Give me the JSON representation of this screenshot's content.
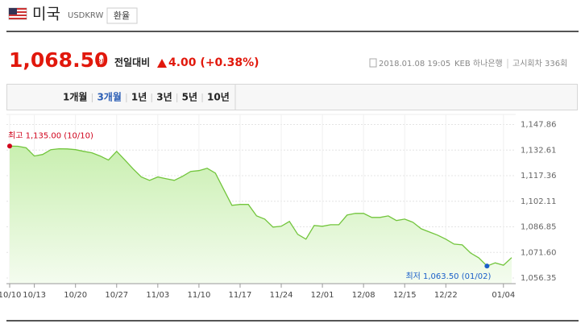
{
  "header": {
    "title": "미국",
    "code": "USDKRW",
    "button": "환율"
  },
  "quote": {
    "price": "1,068.50",
    "unit": "원",
    "change_label": "전일대비",
    "change": "4.00 (+0.38%)",
    "datetime": "2018.01.08 19:05",
    "bank": "KEB 하나은행",
    "round": "고시회차 336회"
  },
  "tabs": [
    "1개월",
    "3개월",
    "1년",
    "3년",
    "5년",
    "10년"
  ],
  "active_tab": 1,
  "chart_data": {
    "type": "area",
    "x": [
      "10/10",
      null,
      null,
      "10/13",
      null,
      null,
      null,
      null,
      "10/20",
      null,
      null,
      null,
      null,
      "10/27",
      null,
      null,
      null,
      null,
      "11/03",
      null,
      null,
      null,
      null,
      "11/10",
      null,
      null,
      null,
      null,
      "11/17",
      null,
      null,
      null,
      null,
      "11/24",
      null,
      null,
      null,
      null,
      "12/01",
      null,
      null,
      null,
      null,
      "12/08",
      null,
      null,
      null,
      null,
      "12/15",
      null,
      null,
      null,
      null,
      "12/22",
      null,
      null,
      null,
      null,
      null,
      null,
      "01/04",
      null
    ],
    "values": [
      1135.0,
      1134.9,
      1134.0,
      1129.1,
      1130.0,
      1132.9,
      1133.4,
      1133.3,
      1132.9,
      1131.9,
      1131.0,
      1129.1,
      1126.7,
      1131.9,
      1126.7,
      1121.4,
      1116.6,
      1114.6,
      1116.6,
      1115.6,
      1114.6,
      1117.0,
      1119.9,
      1120.4,
      1121.8,
      1118.9,
      1109.3,
      1099.7,
      1100.2,
      1100.2,
      1093.4,
      1091.5,
      1086.7,
      1087.2,
      1090.1,
      1082.4,
      1079.5,
      1087.7,
      1087.2,
      1088.1,
      1088.1,
      1093.9,
      1094.9,
      1094.9,
      1092.5,
      1092.5,
      1093.4,
      1090.6,
      1091.5,
      1089.6,
      1085.7,
      1083.8,
      1081.9,
      1079.5,
      1076.6,
      1076.1,
      1071.3,
      1068.4,
      1063.5,
      1065.4,
      1064.0,
      1068.5
    ],
    "color": "#72c53c",
    "ylim": [
      1053,
      1151
    ],
    "yticks": [
      {
        "value": 1147.86,
        "label": "1,147.86"
      },
      {
        "value": 1132.61,
        "label": "1,132.61"
      },
      {
        "value": 1117.36,
        "label": "1,117.36"
      },
      {
        "value": 1102.11,
        "label": "1,102.11"
      },
      {
        "value": 1086.85,
        "label": "1,086.85"
      },
      {
        "value": 1071.6,
        "label": "1,071.60"
      },
      {
        "value": 1056.35,
        "label": "1,056.35"
      }
    ],
    "grid": true,
    "high_label": "최고 1,135.00 (10/10)",
    "low_label": "최저 1,063.50 (01/02)"
  }
}
